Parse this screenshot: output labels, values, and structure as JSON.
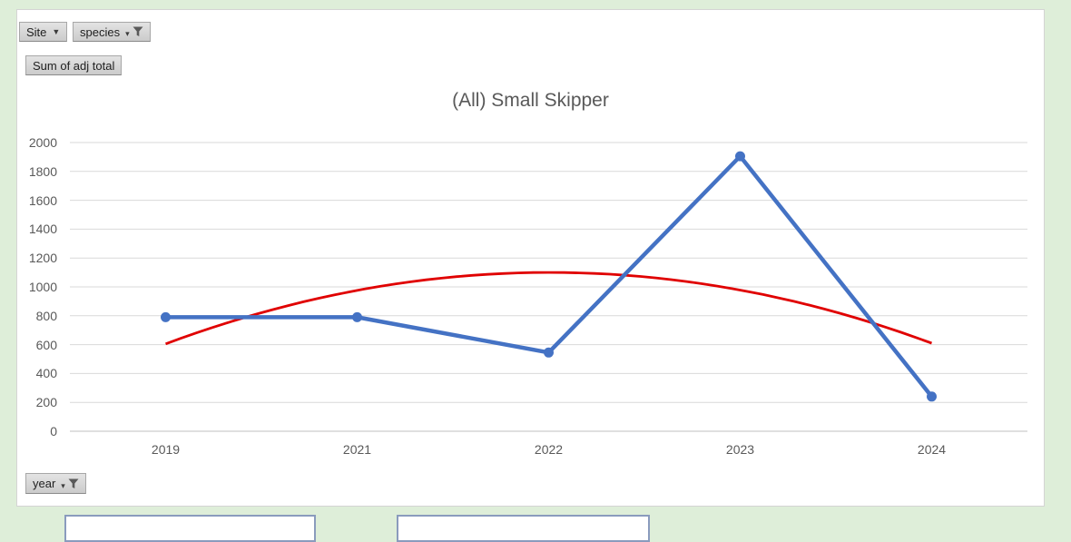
{
  "field_buttons": {
    "site": {
      "label": "Site",
      "dropdown_glyph": "▼",
      "has_filter": false
    },
    "species": {
      "label": "species",
      "dropdown_glyph": "▾",
      "has_filter": true
    },
    "value": {
      "label": "Sum of adj total"
    },
    "year": {
      "label": "year",
      "dropdown_glyph": "▾",
      "has_filter": true
    }
  },
  "icons": {
    "dropdown": "chevron-down",
    "filter": "funnel"
  },
  "chart_data": {
    "type": "line",
    "title": "(All) Small Skipper",
    "categories": [
      "2019",
      "2021",
      "2022",
      "2023",
      "2024"
    ],
    "series": [
      {
        "name": "Sum of adj total",
        "values": [
          790,
          790,
          545,
          1905,
          240
        ],
        "color": "#4472c4",
        "markers": true
      },
      {
        "role": "trendline",
        "fit": "polynomial-order-2",
        "values": [
          605,
          975,
          1100,
          980,
          610
        ],
        "color": "#e00000"
      }
    ],
    "xlabel": "",
    "ylabel": "",
    "ylim": [
      0,
      2000
    ],
    "y_ticks": [
      0,
      200,
      400,
      600,
      800,
      1000,
      1200,
      1400,
      1600,
      1800,
      2000
    ],
    "grid": true,
    "legend": "none"
  },
  "colors": {
    "background": "#deeed9",
    "chart_background": "#ffffff",
    "gridline": "#d9d9d9",
    "axis_line": "#bfbfbf",
    "text": "#595959",
    "series_blue": "#4472c4",
    "trendline_red": "#e00000"
  }
}
